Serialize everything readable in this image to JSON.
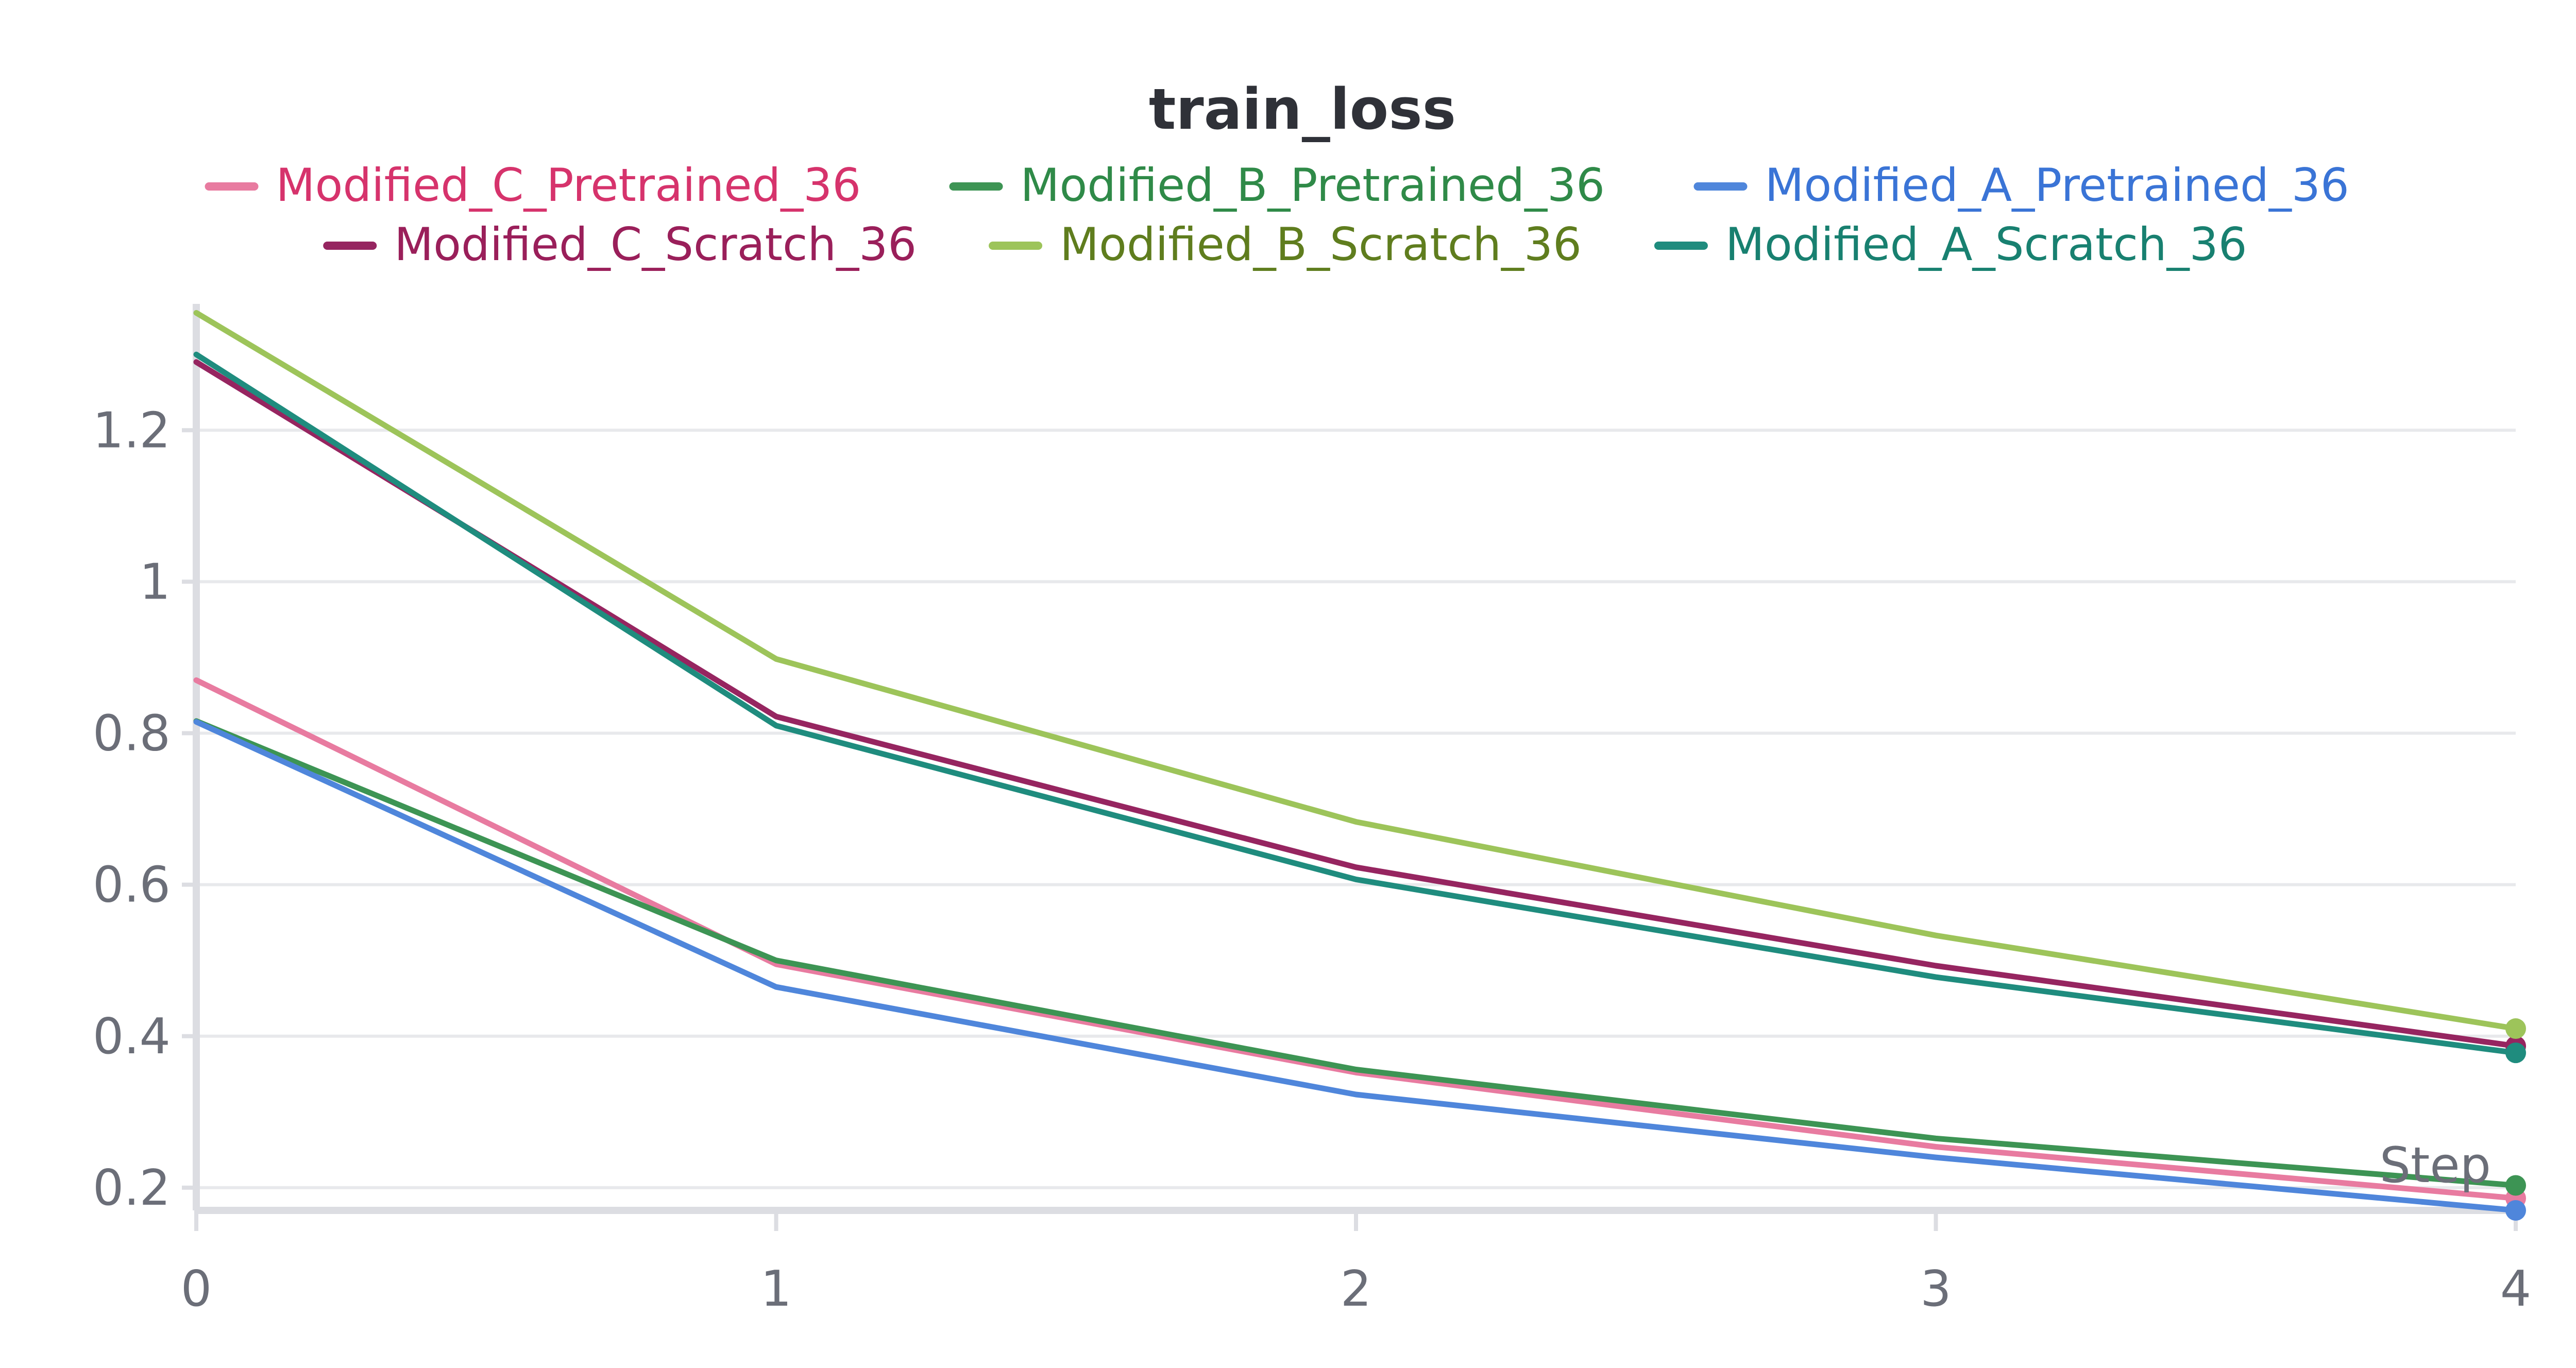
{
  "chart_data": {
    "type": "line",
    "title": "train_loss",
    "xlabel": "Step",
    "ylabel": "",
    "x": [
      0,
      1,
      2,
      3,
      4
    ],
    "xlim": [
      0,
      4
    ],
    "ylim": [
      0.17,
      1.36
    ],
    "x_ticks": [
      "0",
      "1",
      "2",
      "3",
      "4"
    ],
    "y_ticks": [
      {
        "value": 0.2,
        "label": "0.2"
      },
      {
        "value": 0.4,
        "label": "0.4"
      },
      {
        "value": 0.6,
        "label": "0.6"
      },
      {
        "value": 0.8,
        "label": "0.8"
      },
      {
        "value": 1.0,
        "label": "1"
      },
      {
        "value": 1.2,
        "label": "1.2"
      }
    ],
    "grid": true,
    "legend_position": "top",
    "series": [
      {
        "name": "Modified_C_Pretrained_36",
        "color": "#e87ba0",
        "text_color": "#d6336c",
        "values": [
          0.87,
          0.495,
          0.352,
          0.254,
          0.186
        ]
      },
      {
        "name": "Modified_B_Pretrained_36",
        "color": "#3d9454",
        "text_color": "#2f8a48",
        "values": [
          0.816,
          0.5,
          0.356,
          0.265,
          0.203
        ]
      },
      {
        "name": "Modified_A_Pretrained_36",
        "color": "#4f86db",
        "text_color": "#3a74d6",
        "values": [
          0.815,
          0.465,
          0.323,
          0.24,
          0.17
        ]
      },
      {
        "name": "Modified_C_Scratch_36",
        "color": "#962560",
        "text_color": "#9a1f5a",
        "values": [
          1.29,
          0.822,
          0.623,
          0.493,
          0.387
        ]
      },
      {
        "name": "Modified_B_Scratch_36",
        "color": "#9dc45a",
        "text_color": "#5f7d1e",
        "values": [
          1.355,
          0.898,
          0.683,
          0.533,
          0.41
        ]
      },
      {
        "name": "Modified_A_Scratch_36",
        "color": "#1f8c7e",
        "text_color": "#188070",
        "values": [
          1.3,
          0.81,
          0.607,
          0.478,
          0.378
        ]
      }
    ]
  }
}
